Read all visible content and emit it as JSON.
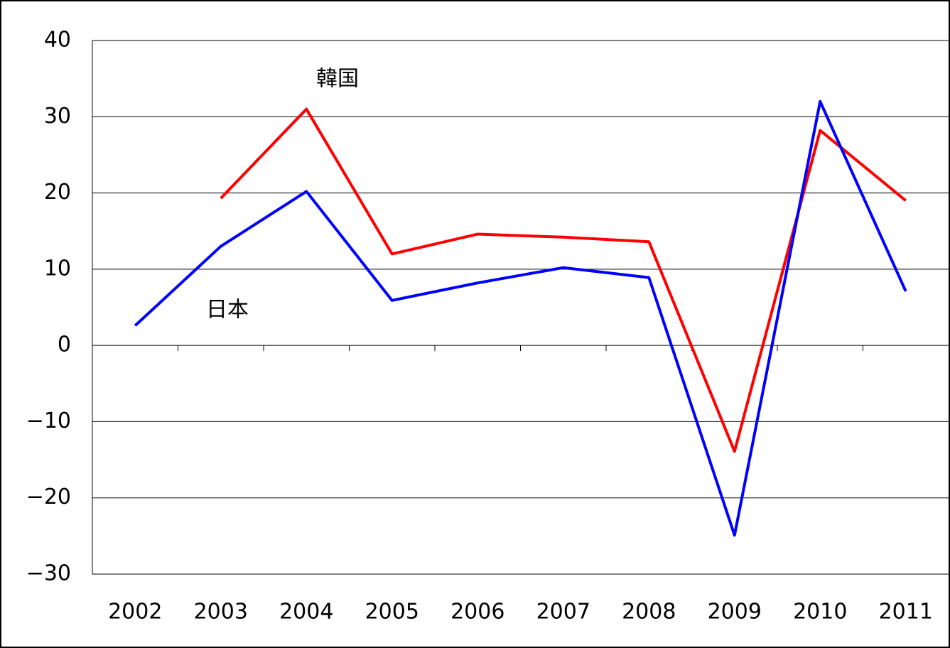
{
  "chart_data": {
    "type": "line",
    "categories": [
      "2002",
      "2003",
      "2004",
      "2005",
      "2006",
      "2007",
      "2008",
      "2009",
      "2010",
      "2011"
    ],
    "series": [
      {
        "name": "韓国",
        "color": "#ff0000",
        "values": [
          null,
          19.3,
          31.0,
          12.0,
          14.6,
          14.2,
          13.6,
          -13.9,
          28.2,
          19.0
        ]
      },
      {
        "name": "日本",
        "color": "#0000ff",
        "values": [
          2.6,
          13.0,
          20.2,
          5.9,
          8.2,
          10.2,
          8.9,
          -24.9,
          32.0,
          7.1
        ]
      }
    ],
    "ylim": [
      -30,
      40
    ],
    "yticks": [
      {
        "value": -30,
        "label": "−30"
      },
      {
        "value": -20,
        "label": "−20"
      },
      {
        "value": -10,
        "label": "−10"
      },
      0,
      10,
      20,
      30,
      40
    ],
    "grid": true
  }
}
